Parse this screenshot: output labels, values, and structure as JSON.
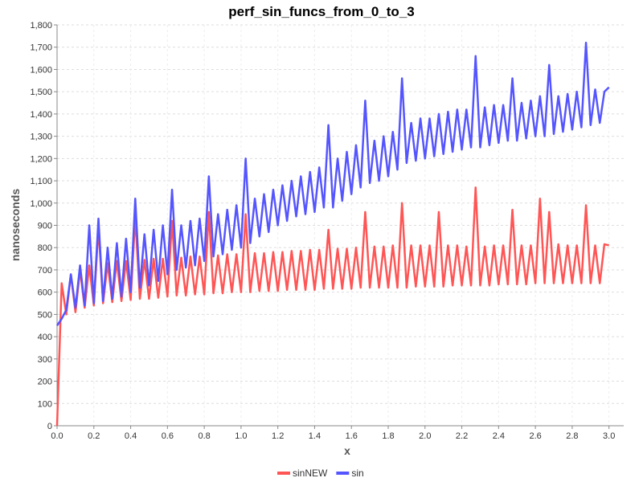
{
  "chart_data": {
    "type": "line",
    "title": "perf_sin_funcs_from_0_to_3",
    "x_label": "x",
    "y_label": "nanoseconds",
    "x": [
      0,
      0.025,
      0.05,
      0.075,
      0.1,
      0.125,
      0.15,
      0.175,
      0.2,
      0.225,
      0.25,
      0.275,
      0.3,
      0.325,
      0.35,
      0.375,
      0.4,
      0.425,
      0.45,
      0.475,
      0.5,
      0.525,
      0.55,
      0.575,
      0.6,
      0.625,
      0.65,
      0.675,
      0.7,
      0.725,
      0.75,
      0.775,
      0.8,
      0.825,
      0.85,
      0.875,
      0.9,
      0.925,
      0.95,
      0.975,
      1,
      1.025,
      1.05,
      1.075,
      1.1,
      1.125,
      1.15,
      1.175,
      1.2,
      1.225,
      1.25,
      1.275,
      1.3,
      1.325,
      1.35,
      1.375,
      1.4,
      1.425,
      1.45,
      1.475,
      1.5,
      1.525,
      1.55,
      1.575,
      1.6,
      1.625,
      1.65,
      1.675,
      1.7,
      1.725,
      1.75,
      1.775,
      1.8,
      1.825,
      1.85,
      1.875,
      1.9,
      1.925,
      1.95,
      1.975,
      2,
      2.025,
      2.05,
      2.075,
      2.1,
      2.125,
      2.15,
      2.175,
      2.2,
      2.225,
      2.25,
      2.275,
      2.3,
      2.325,
      2.35,
      2.375,
      2.4,
      2.425,
      2.45,
      2.475,
      2.5,
      2.525,
      2.55,
      2.575,
      2.6,
      2.625,
      2.65,
      2.675,
      2.7,
      2.725,
      2.75,
      2.775,
      2.8,
      2.825,
      2.85,
      2.875,
      2.9,
      2.925,
      2.95,
      2.975,
      3
    ],
    "series": [
      {
        "name": "sinNEW",
        "color": "#ff5555",
        "values": [
          0,
          640,
          500,
          680,
          510,
          700,
          530,
          720,
          540,
          890,
          550,
          730,
          555,
          740,
          560,
          740,
          565,
          940,
          570,
          745,
          570,
          750,
          575,
          750,
          580,
          920,
          585,
          755,
          585,
          760,
          590,
          760,
          590,
          960,
          595,
          765,
          595,
          770,
          600,
          770,
          600,
          950,
          600,
          775,
          605,
          775,
          605,
          780,
          605,
          780,
          610,
          785,
          610,
          785,
          610,
          790,
          610,
          790,
          615,
          880,
          615,
          795,
          615,
          795,
          615,
          800,
          620,
          960,
          620,
          805,
          620,
          805,
          620,
          810,
          620,
          1000,
          620,
          810,
          625,
          810,
          625,
          810,
          625,
          960,
          625,
          810,
          630,
          810,
          630,
          805,
          630,
          1070,
          630,
          805,
          630,
          810,
          635,
          810,
          635,
          970,
          635,
          810,
          635,
          810,
          640,
          1020,
          640,
          960,
          640,
          815,
          640,
          810,
          640,
          810,
          640,
          990,
          640,
          810,
          640,
          815,
          810
        ]
      },
      {
        "name": "sin",
        "color": "#5555ff",
        "values": [
          450,
          480,
          520,
          680,
          530,
          720,
          540,
          900,
          550,
          930,
          560,
          800,
          570,
          820,
          580,
          840,
          600,
          1020,
          620,
          860,
          630,
          880,
          650,
          900,
          680,
          1060,
          700,
          900,
          710,
          920,
          720,
          930,
          740,
          1120,
          760,
          950,
          770,
          970,
          790,
          990,
          800,
          1200,
          820,
          1020,
          850,
          1040,
          870,
          1060,
          900,
          1080,
          920,
          1100,
          940,
          1120,
          950,
          1140,
          960,
          1160,
          980,
          1350,
          980,
          1200,
          1010,
          1230,
          1040,
          1260,
          1070,
          1460,
          1090,
          1280,
          1100,
          1300,
          1120,
          1320,
          1150,
          1560,
          1180,
          1360,
          1190,
          1380,
          1200,
          1380,
          1210,
          1400,
          1220,
          1410,
          1230,
          1420,
          1240,
          1420,
          1250,
          1660,
          1250,
          1430,
          1260,
          1440,
          1270,
          1440,
          1280,
          1560,
          1280,
          1450,
          1290,
          1460,
          1300,
          1480,
          1300,
          1620,
          1310,
          1480,
          1320,
          1490,
          1330,
          1500,
          1340,
          1720,
          1350,
          1510,
          1360,
          1500,
          1520
        ]
      }
    ],
    "xlim": [
      0,
      3.08
    ],
    "xticks": [
      {
        "value": 0,
        "label": "0.0"
      },
      0.2,
      0.4,
      0.6,
      0.8,
      {
        "value": 1,
        "label": "1.0"
      },
      1.2,
      1.4,
      1.6,
      1.8,
      {
        "value": 2,
        "label": "2.0"
      },
      2.2,
      2.4,
      2.6,
      2.8,
      {
        "value": 3,
        "label": "3.0"
      }
    ],
    "ylim": [
      0,
      1800
    ],
    "yticks": [
      0,
      100,
      200,
      300,
      400,
      500,
      600,
      700,
      800,
      900,
      {
        "value": 1000,
        "label": "1,000"
      },
      {
        "value": 1100,
        "label": "1,100"
      },
      {
        "value": 1200,
        "label": "1,200"
      },
      {
        "value": 1300,
        "label": "1,300"
      },
      {
        "value": 1400,
        "label": "1,400"
      },
      {
        "value": 1500,
        "label": "1,500"
      },
      {
        "value": 1600,
        "label": "1,600"
      },
      {
        "value": 1700,
        "label": "1,700"
      },
      {
        "value": 1800,
        "label": "1,800"
      }
    ],
    "grid": true,
    "legend": "bottom"
  }
}
